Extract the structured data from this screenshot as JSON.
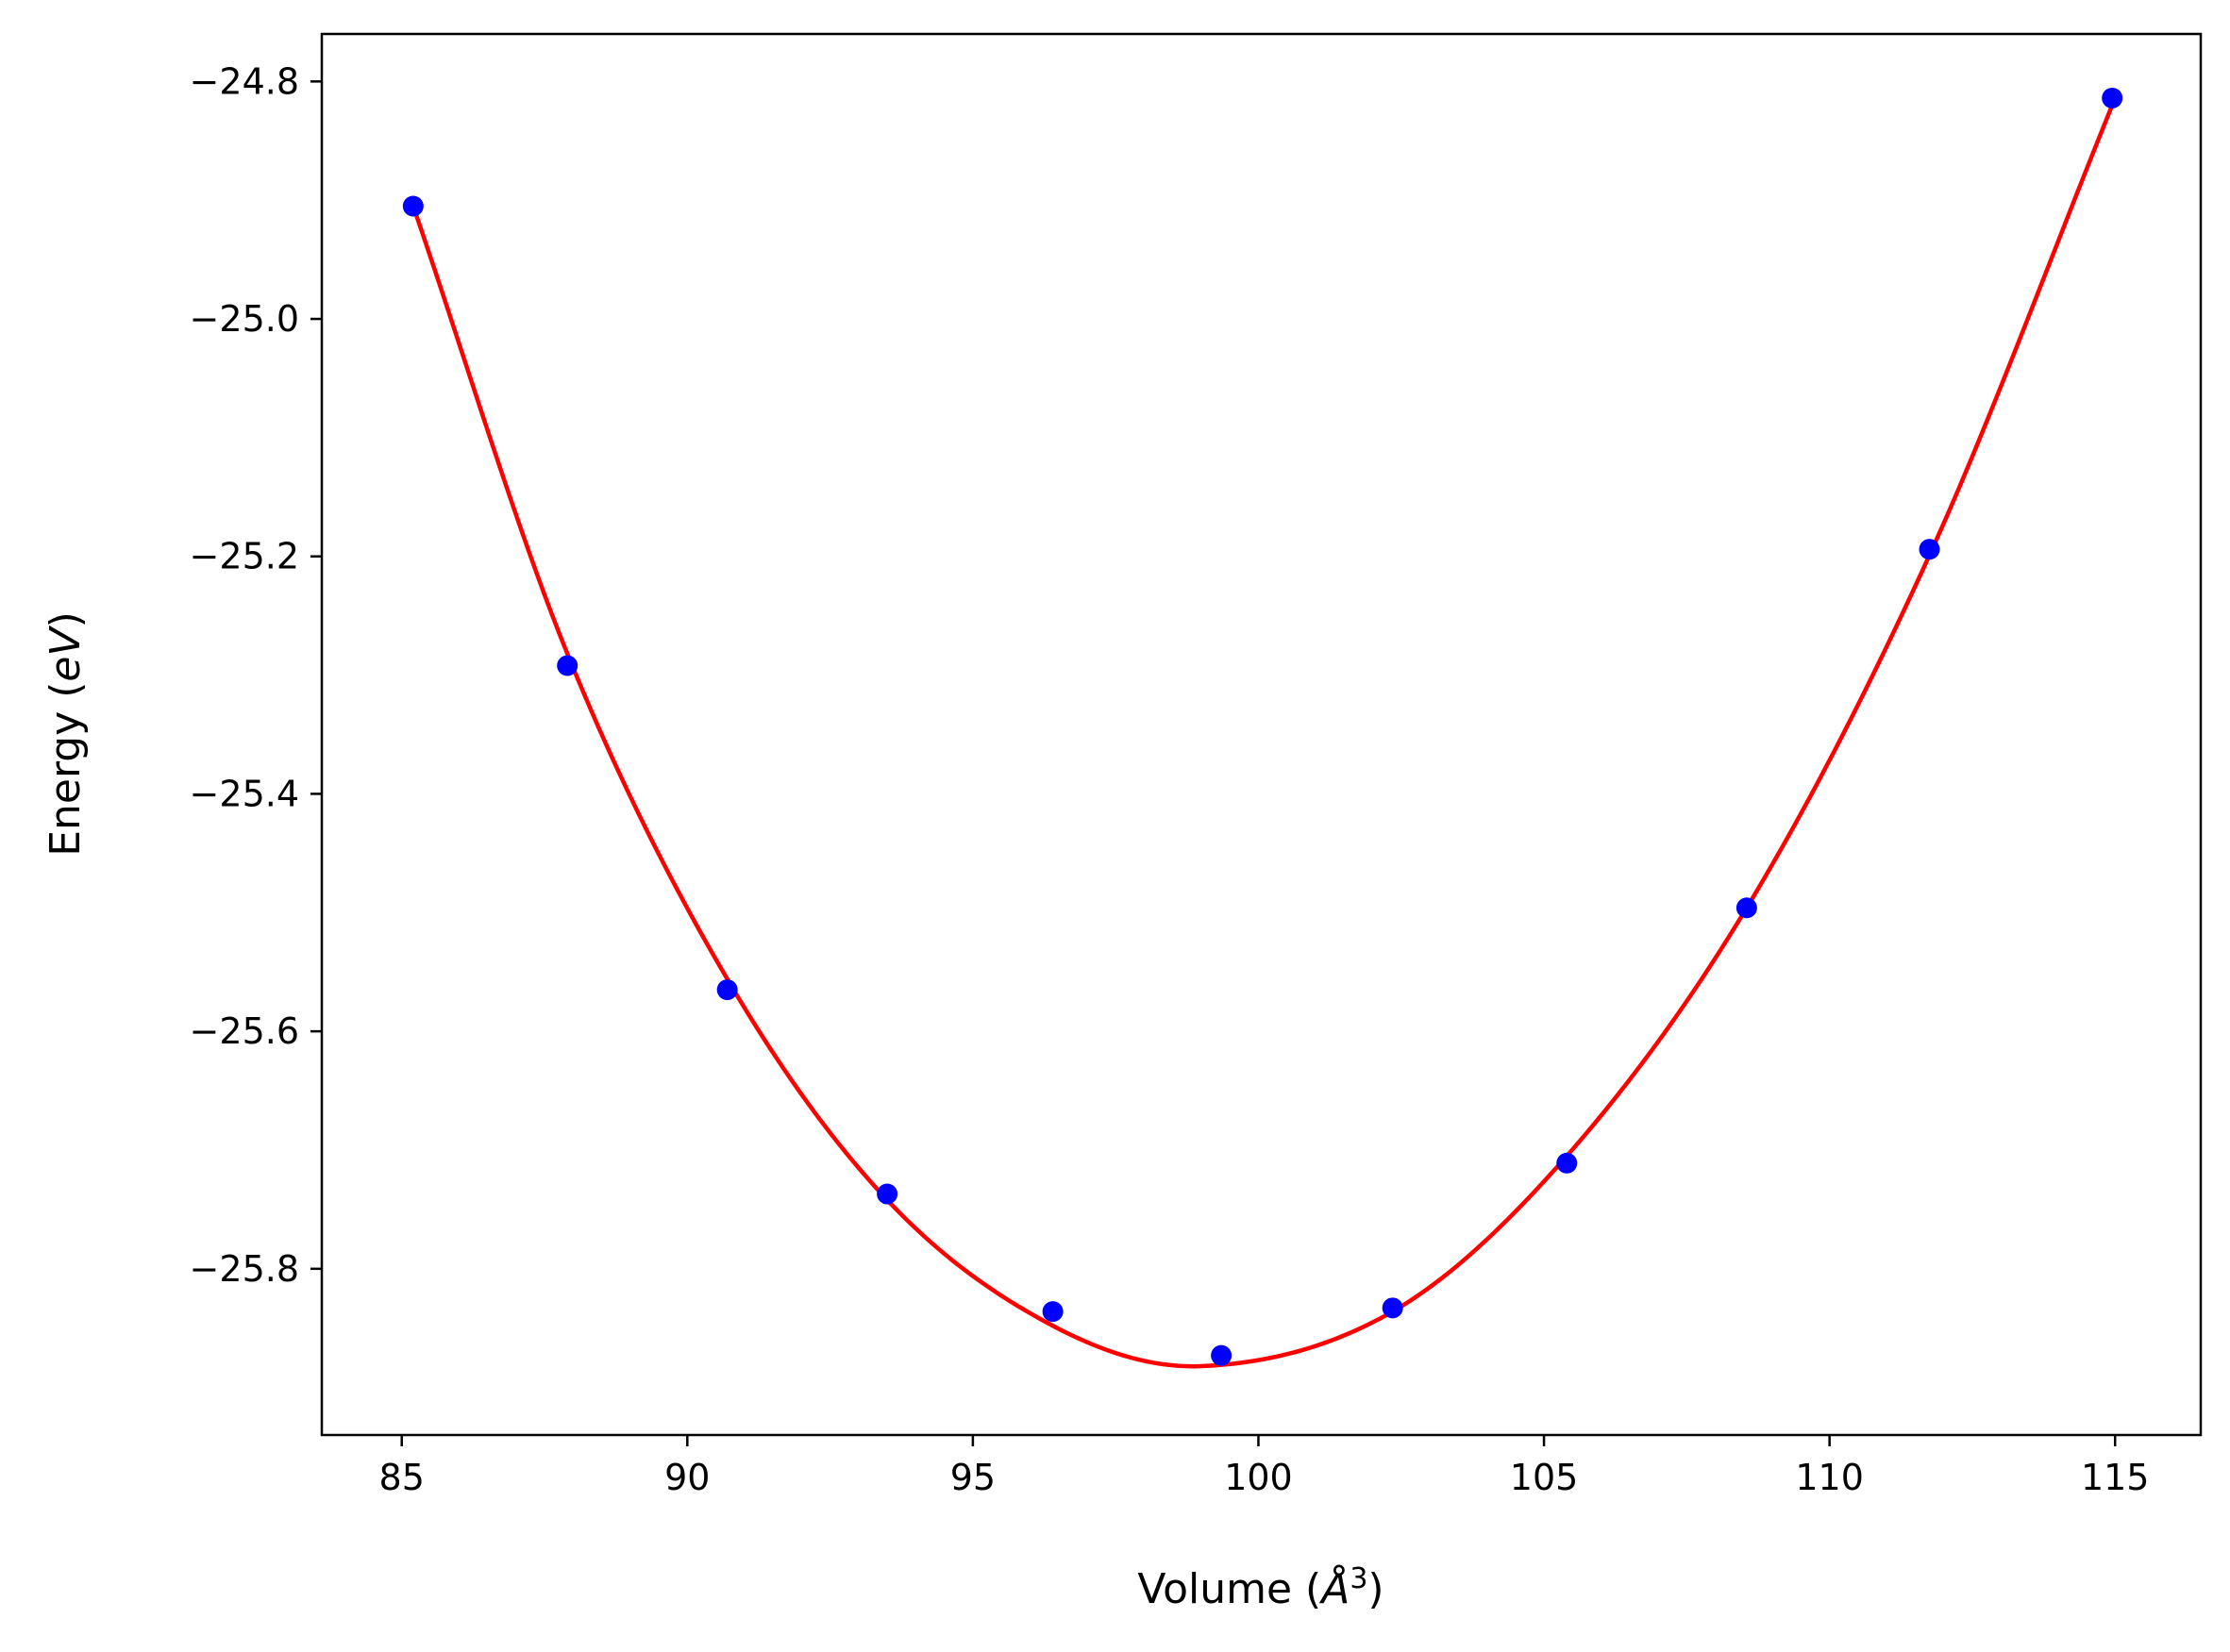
{
  "chart_data": {
    "type": "scatter",
    "title": "",
    "xlabel": "Volume (Å³)",
    "ylabel": "Energy (eV)",
    "xlabel_parts": {
      "pre": "Volume (",
      "unit": "Å",
      "exp": "3",
      "post": ")"
    },
    "ylabel_parts": {
      "pre": "Energy (",
      "unit": "eV",
      "post": ")"
    },
    "xlim": [
      83.6,
      116.5
    ],
    "ylim": [
      -25.94,
      -24.76
    ],
    "xticks": [
      85,
      90,
      95,
      100,
      105,
      110,
      115
    ],
    "yticks": [
      -24.8,
      -25.0,
      -25.2,
      -25.4,
      -25.6,
      -25.8
    ],
    "ytick_labels": [
      "−24.8",
      "−25.0",
      "−25.2",
      "−25.4",
      "−25.6",
      "−25.8"
    ],
    "grid": false,
    "series": [
      {
        "kind": "points",
        "color": "#0000ff",
        "x": [
          85.2,
          87.9,
          90.7,
          93.5,
          96.4,
          99.35,
          102.35,
          105.4,
          108.55,
          111.75,
          114.95
        ],
        "y": [
          -24.905,
          -25.292,
          -25.565,
          -25.737,
          -25.836,
          -25.873,
          -25.833,
          -25.711,
          -25.496,
          -25.194,
          -24.814
        ]
      },
      {
        "kind": "fit",
        "color": "#ff0000",
        "x": [
          85.2,
          87.9,
          90.7,
          93.5,
          96.4,
          99.0,
          102.35,
          105.4,
          108.55,
          111.75,
          114.95
        ],
        "y": [
          -24.905,
          -25.282,
          -25.556,
          -25.742,
          -25.848,
          -25.882,
          -25.836,
          -25.705,
          -25.496,
          -25.199,
          -24.82
        ]
      }
    ]
  }
}
